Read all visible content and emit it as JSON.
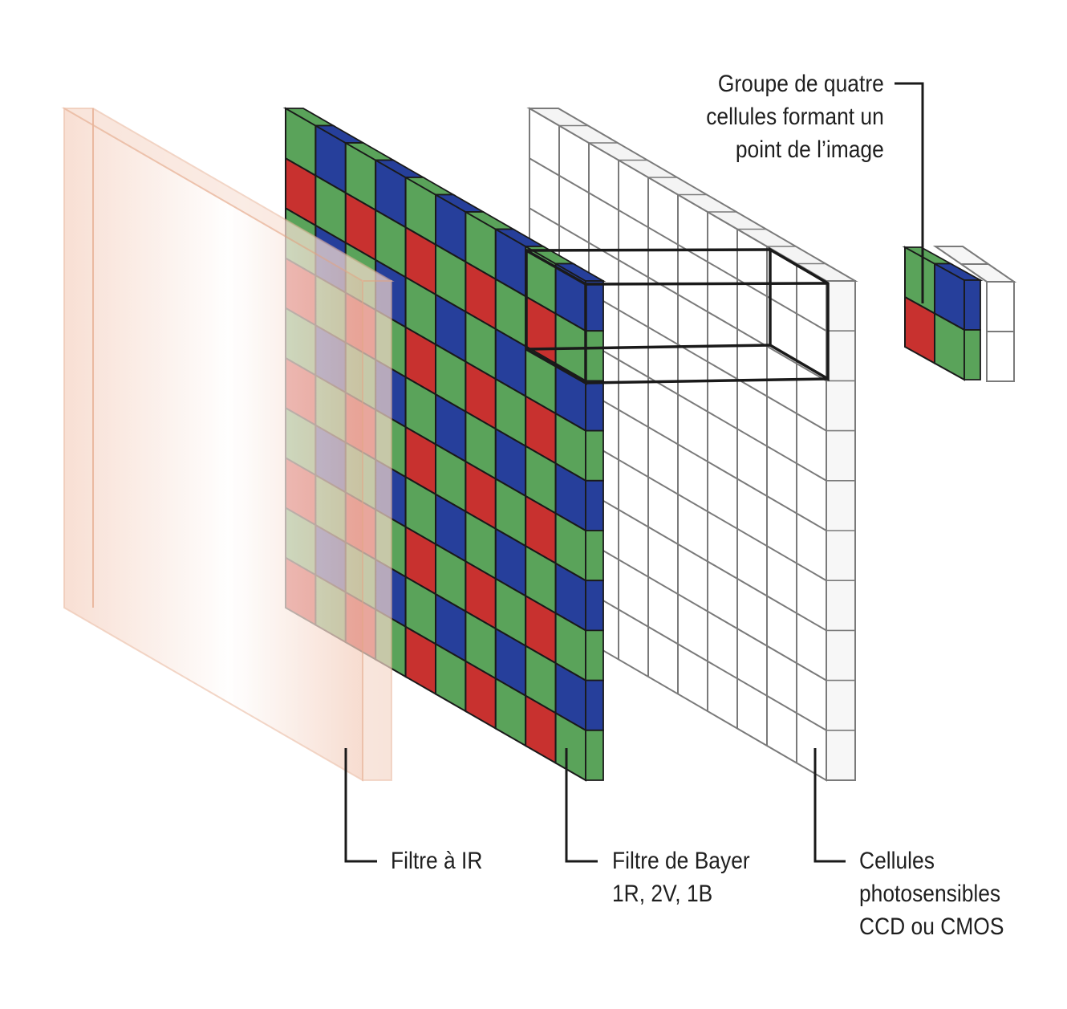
{
  "labels": {
    "group": [
      "Groupe de quatre",
      "cellules formant un",
      "point de l’image"
    ],
    "ir_filter": [
      "Filtre à IR"
    ],
    "bayer_filter": [
      "Filtre de Bayer",
      "1R, 2V, 1B"
    ],
    "photo_cells": [
      "Cellules",
      "photosensibles",
      "CCD ou CMOS"
    ]
  },
  "colors": {
    "red": "#c8312f",
    "green": "#5aa35a",
    "blue": "#263f9b",
    "ir_edge": "#e9b59a",
    "ir_fill": "#f7ddd0",
    "grid_line": "#7a7a7a",
    "outline": "#1a1a1a"
  },
  "bayer_pattern": [
    [
      "G",
      "B"
    ],
    [
      "R",
      "G"
    ]
  ]
}
